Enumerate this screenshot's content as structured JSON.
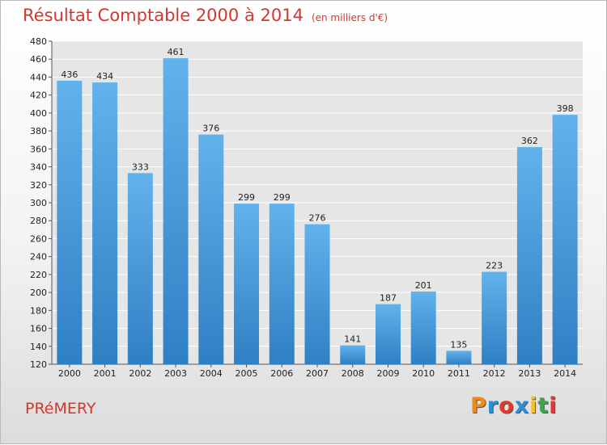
{
  "chart_data": {
    "type": "bar",
    "title": "Résultat Comptable 2000 à 2014",
    "subtitle": "(en milliers d'€)",
    "categories": [
      "2000",
      "2001",
      "2002",
      "2003",
      "2004",
      "2005",
      "2006",
      "2007",
      "2008",
      "2009",
      "2010",
      "2011",
      "2012",
      "2013",
      "2014"
    ],
    "values": [
      436,
      434,
      333,
      461,
      376,
      299,
      299,
      276,
      141,
      187,
      201,
      135,
      223,
      362,
      398
    ],
    "ylim": [
      120,
      480
    ],
    "yticks": [
      120,
      140,
      160,
      180,
      200,
      220,
      240,
      260,
      280,
      300,
      320,
      340,
      360,
      380,
      400,
      420,
      440,
      460,
      480
    ],
    "grid": true,
    "bar_color": "#3f94d8"
  },
  "place_name": "PRéMERY",
  "logo": {
    "letters": [
      "P",
      "r",
      "o",
      "x",
      "i",
      "t",
      "i"
    ],
    "colors": [
      "#f08a1c",
      "#2a8fd6",
      "#e23a2e",
      "#2a8fd6",
      "#f5c11c",
      "#3aa64a",
      "#e23a2e"
    ]
  }
}
